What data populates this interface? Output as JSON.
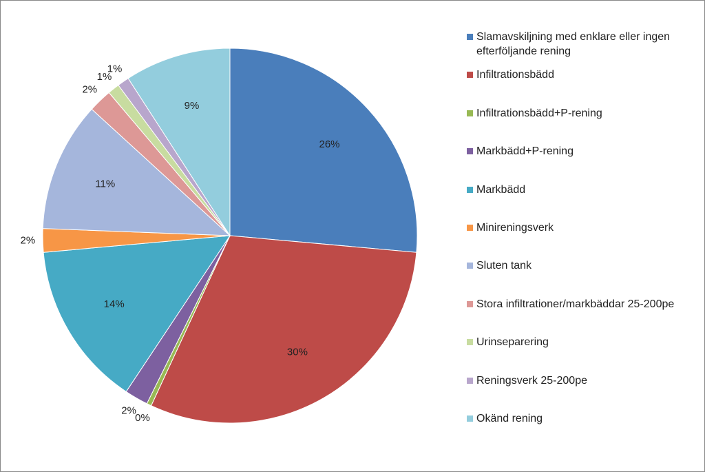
{
  "chart_data": {
    "type": "pie",
    "categories": [
      "Slamavskiljning med enklare eller ingen efterföljande rening",
      "Infiltrationsbädd",
      "Infiltrationsbädd+P-rening",
      "Markbädd+P-rening",
      "Markbädd",
      "Minireningsverk",
      "Sluten tank",
      "Stora infiltrationer/markbäddar 25-200pe",
      "Urinseparering",
      "Reningsverk 25-200pe",
      "Okänd rening"
    ],
    "values": [
      26,
      30,
      0.4,
      2,
      14,
      2,
      11,
      2,
      1,
      1,
      9
    ],
    "value_labels": [
      "26%",
      "30%",
      "0%",
      "2%",
      "14%",
      "2%",
      "11%",
      "2%",
      "1%",
      "1%",
      "9%"
    ],
    "colors": [
      "#4a7ebb",
      "#be4b48",
      "#98b954",
      "#7d60a0",
      "#46aac5",
      "#f79646",
      "#a5b6dc",
      "#dd9896",
      "#c8dca0",
      "#b8a6cc",
      "#93cddd"
    ],
    "legend": "right"
  }
}
